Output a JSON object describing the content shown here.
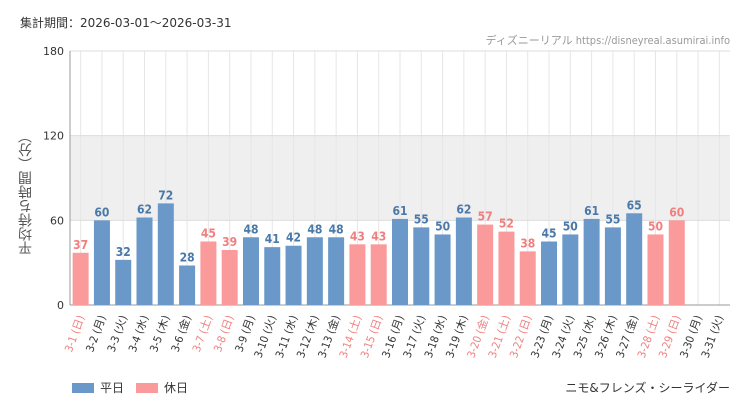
{
  "header": {
    "period_label": "集計期間：2026-03-01〜2026-03-31",
    "credit": "ディズニーリアル https://disneyreal.asumirai.info"
  },
  "legend": {
    "weekday": "平日",
    "holiday": "休日"
  },
  "attraction": "ニモ&フレンズ・シーライダー",
  "colors": {
    "weekday": "#6a98c8",
    "holiday": "#fb9a9a",
    "band": "#efefef",
    "grid": "#e6e6e6"
  },
  "chart_data": {
    "type": "bar",
    "title": "",
    "ylabel": "平均待ち時間（分）",
    "xlabel": "",
    "ylim": [
      0,
      180
    ],
    "yticks": [
      0,
      60,
      120,
      180
    ],
    "band": [
      60,
      120
    ],
    "categories": [
      "3-1 (日)",
      "3-2 (月)",
      "3-3 (火)",
      "3-4 (水)",
      "3-5 (木)",
      "3-6 (金)",
      "3-7 (土)",
      "3-8 (日)",
      "3-9 (月)",
      "3-10 (火)",
      "3-11 (水)",
      "3-12 (木)",
      "3-13 (金)",
      "3-14 (土)",
      "3-15 (日)",
      "3-16 (月)",
      "3-17 (火)",
      "3-18 (水)",
      "3-19 (木)",
      "3-20 (金)",
      "3-21 (土)",
      "3-22 (日)",
      "3-23 (月)",
      "3-24 (火)",
      "3-25 (水)",
      "3-26 (木)",
      "3-27 (金)",
      "3-28 (土)",
      "3-29 (日)",
      "3-30 (月)",
      "3-31 (火)"
    ],
    "values": [
      37,
      60,
      32,
      62,
      72,
      28,
      45,
      39,
      48,
      41,
      42,
      48,
      48,
      43,
      43,
      61,
      55,
      50,
      62,
      57,
      52,
      38,
      45,
      50,
      61,
      55,
      65,
      50,
      60,
      null,
      null
    ],
    "holiday": [
      true,
      false,
      false,
      false,
      false,
      false,
      true,
      true,
      false,
      false,
      false,
      false,
      false,
      true,
      true,
      false,
      false,
      false,
      false,
      true,
      true,
      true,
      false,
      false,
      false,
      false,
      false,
      true,
      true,
      false,
      false
    ]
  }
}
